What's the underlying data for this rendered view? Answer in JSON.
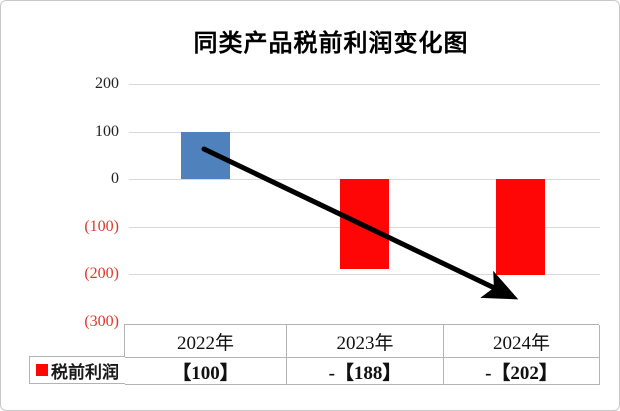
{
  "page": {
    "background": "#ffffff",
    "border_color": "#c9c9c9"
  },
  "chart_data": {
    "type": "bar",
    "title": "同类产品税前利润变化图",
    "categories": [
      "2022年",
      "2023年",
      "2024年"
    ],
    "series": [
      {
        "name": "税前利润",
        "values": [
          100,
          -188,
          -202
        ],
        "colors": [
          "#4f81bd",
          "#fe0606",
          "#fe0606"
        ]
      }
    ],
    "value_labels": [
      "【100】",
      "-【188】",
      "-【202】"
    ],
    "ylim": [
      -300,
      200
    ],
    "ytick_values": [
      200,
      100,
      0,
      -100,
      -200,
      -300
    ],
    "ytick_labels": [
      "200",
      "100",
      "0",
      "(100)",
      "(200)",
      "(300)"
    ],
    "grid": true,
    "legend": {
      "label": "税前利润",
      "marker_color": "#fe0606",
      "position": "data-table-row-left"
    },
    "annotation": {
      "type": "arrow",
      "description": "thick black downward trend arrow from 2022 bar to lower right",
      "color": "#000000"
    },
    "colors": {
      "positive_bar": "#4f81bd",
      "negative_bar": "#fe0606",
      "negative_tick_text": "#e0362b",
      "gridline": "#d9d9d9",
      "table_border": "#b3b3b3",
      "title_text": "#000000"
    }
  }
}
